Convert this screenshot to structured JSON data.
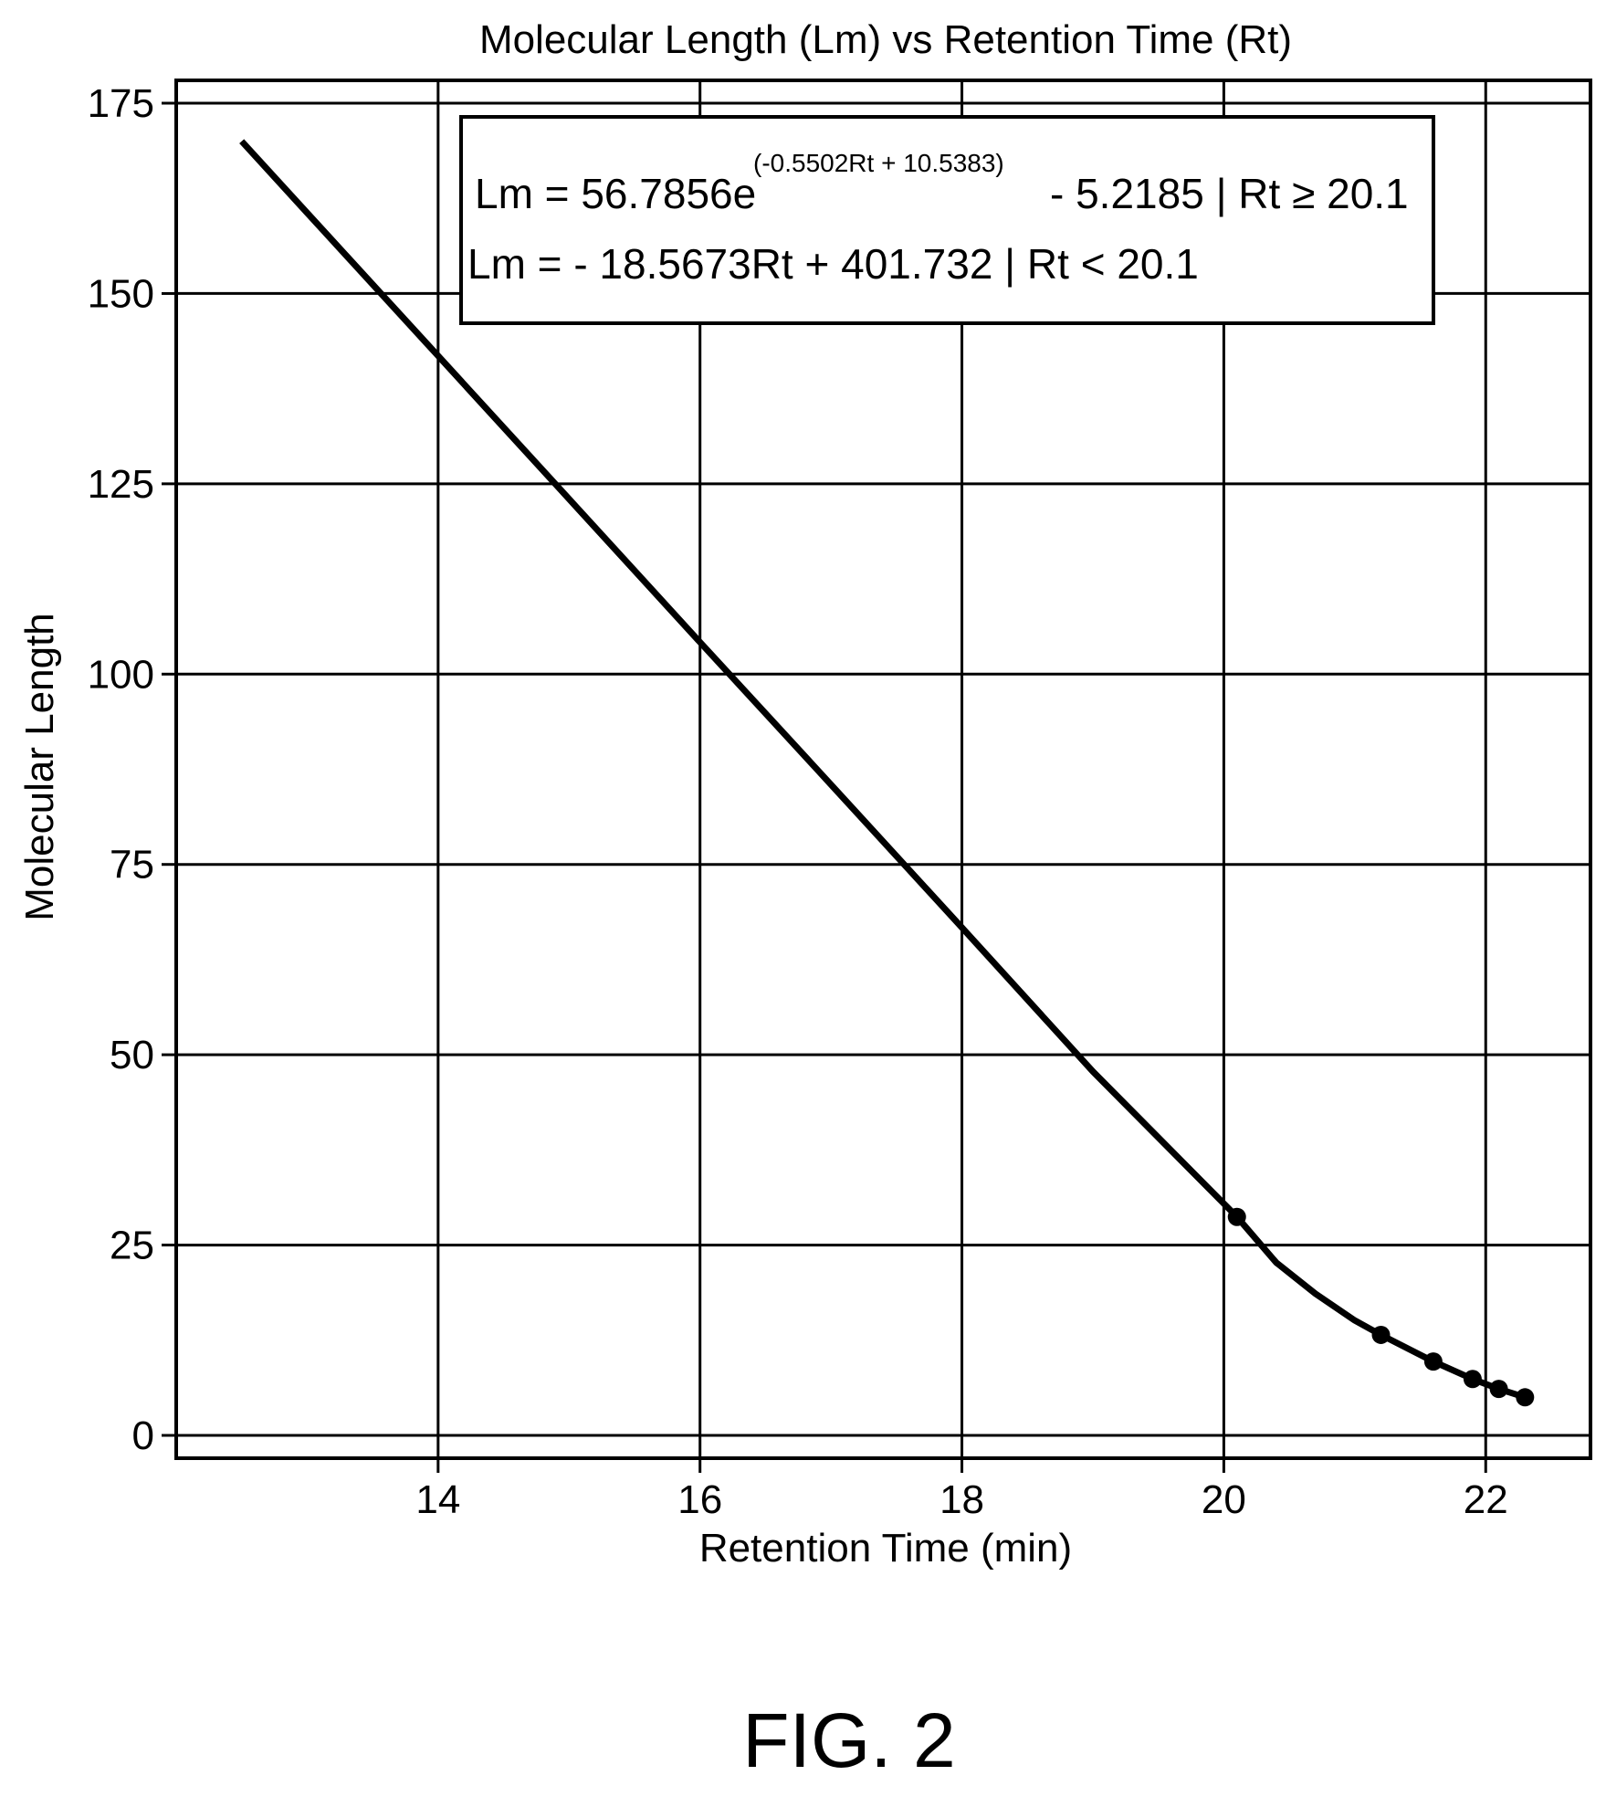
{
  "chart_data": {
    "type": "line",
    "title": "Molecular Length (Lm) vs Retention Time (Rt)",
    "xlabel": "Retention Time (min)",
    "ylabel": "Molecular Length",
    "xlim": [
      12.0,
      22.8
    ],
    "ylim": [
      -3,
      178
    ],
    "xticks": [
      14,
      16,
      18,
      20,
      22
    ],
    "yticks": [
      0,
      25,
      50,
      75,
      100,
      125,
      150,
      175
    ],
    "grid": true,
    "equations": {
      "exp_prefix": "Lm = 56.7856e",
      "exp_power": "(-0.5502Rt + 10.5383)",
      "exp_suffix": "- 5.2185 | Rt ≥ 20.1",
      "linear": "Lm = - 18.5673Rt + 401.732 | Rt < 20.1"
    },
    "series": [
      {
        "type": "line",
        "x": [
          12.5,
          13.0,
          14.0,
          15.0,
          16.0,
          17.0,
          18.0,
          19.0,
          20.1,
          20.4,
          20.7,
          21.0,
          21.2,
          21.6,
          21.9,
          22.1,
          22.3
        ],
        "y": [
          170,
          160.6,
          141.8,
          123.0,
          104.2,
          85.5,
          66.7,
          47.8,
          28.7,
          22.7,
          18.6,
          15.1,
          13.2,
          9.7,
          7.4,
          6.1,
          5.0
        ]
      },
      {
        "type": "scatter",
        "x": [
          20.1,
          21.2,
          21.6,
          21.9,
          22.1,
          22.3
        ],
        "y": [
          28.7,
          13.2,
          9.7,
          7.4,
          6.1,
          5.0
        ]
      }
    ]
  },
  "figure_label": "FIG. 2"
}
